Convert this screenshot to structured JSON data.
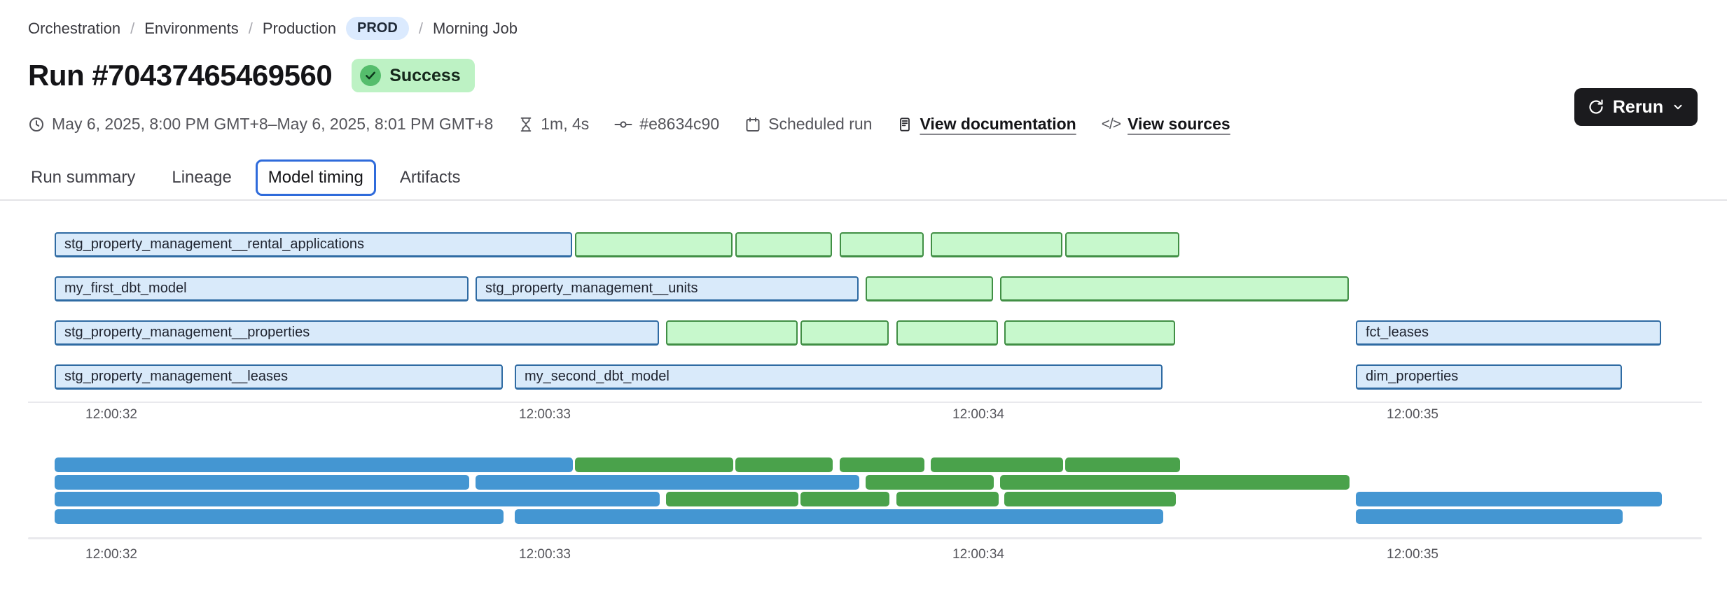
{
  "breadcrumb": {
    "separator": "/",
    "items": [
      "Orchestration",
      "Environments",
      "Production"
    ],
    "env_badge": "PROD",
    "last": "Morning Job"
  },
  "header": {
    "title": "Run #70437465469560",
    "status": "Success"
  },
  "actions": {
    "rerun_label": "Rerun"
  },
  "meta": {
    "date_range": "May 6, 2025, 8:00 PM GMT+8–May 6, 2025, 8:01 PM GMT+8",
    "duration": "1m, 4s",
    "commit": "#e8634c90",
    "trigger": "Scheduled run",
    "doc_link": "View documentation",
    "sources_link": "View sources",
    "code_glyph": "</>"
  },
  "tabs": [
    {
      "label": "Run summary",
      "active": false
    },
    {
      "label": "Lineage",
      "active": false
    },
    {
      "label": "Model timing",
      "active": true
    },
    {
      "label": "Artifacts",
      "active": false
    }
  ],
  "chart_data": {
    "type": "bar",
    "subtype": "gantt-model-timing",
    "title": "",
    "xlabel": "",
    "ylabel": "",
    "grid": false,
    "x_ticks": [
      "12:00:32",
      "12:00:33",
      "12:00:34",
      "12:00:35"
    ],
    "x_tick_seconds": [
      32,
      33,
      34,
      35
    ],
    "domain_seconds": [
      31.87,
      35.59
    ],
    "colors": {
      "model_fill": "#d9eafa",
      "model_border": "#2f6ba3",
      "test_fill": "#c7f8cc",
      "test_border": "#418f45",
      "minimap_model": "#4496d2",
      "minimap_test": "#4aa24b"
    },
    "rows": [
      {
        "bars": [
          {
            "label": "stg_property_management__rental_applications",
            "color": "blue",
            "start": 31.87,
            "end": 33.07
          },
          {
            "label": "",
            "color": "green",
            "start": 33.07,
            "end": 33.44
          },
          {
            "label": "",
            "color": "green",
            "start": 33.44,
            "end": 33.67
          },
          {
            "label": "",
            "color": "green",
            "start": 33.68,
            "end": 33.88
          },
          {
            "label": "",
            "color": "green",
            "start": 33.89,
            "end": 34.2
          },
          {
            "label": "",
            "color": "green",
            "start": 34.2,
            "end": 34.47
          }
        ]
      },
      {
        "bars": [
          {
            "label": "my_first_dbt_model",
            "color": "blue",
            "start": 31.87,
            "end": 32.83
          },
          {
            "label": "stg_property_management__units",
            "color": "blue",
            "start": 32.84,
            "end": 33.73
          },
          {
            "label": "",
            "color": "green",
            "start": 33.74,
            "end": 34.04
          },
          {
            "label": "",
            "color": "green",
            "start": 34.05,
            "end": 34.86
          }
        ]
      },
      {
        "bars": [
          {
            "label": "stg_property_management__properties",
            "color": "blue",
            "start": 31.87,
            "end": 33.27
          },
          {
            "label": "",
            "color": "green",
            "start": 33.28,
            "end": 33.59
          },
          {
            "label": "",
            "color": "green",
            "start": 33.59,
            "end": 33.8
          },
          {
            "label": "",
            "color": "green",
            "start": 33.81,
            "end": 34.05
          },
          {
            "label": "",
            "color": "green",
            "start": 34.06,
            "end": 34.46
          },
          {
            "label": "fct_leases",
            "color": "blue",
            "start": 34.87,
            "end": 35.58
          }
        ]
      },
      {
        "bars": [
          {
            "label": "stg_property_management__leases",
            "color": "blue",
            "start": 31.87,
            "end": 32.91
          },
          {
            "label": "my_second_dbt_model",
            "color": "blue",
            "start": 32.93,
            "end": 34.43
          },
          {
            "label": "dim_properties",
            "color": "blue",
            "start": 34.87,
            "end": 35.49
          }
        ]
      }
    ]
  }
}
